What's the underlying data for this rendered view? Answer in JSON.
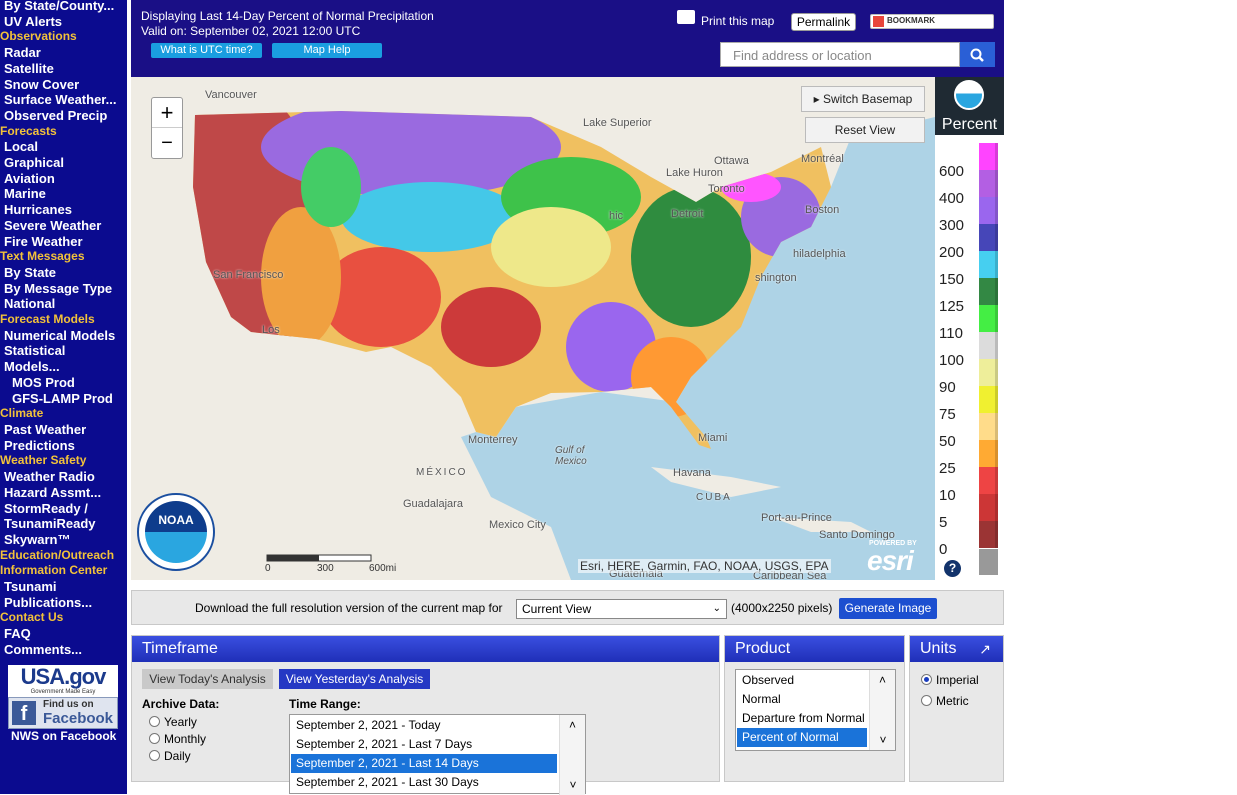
{
  "sidebar": {
    "top_links": [
      "By State/County...",
      "UV Alerts"
    ],
    "sections": [
      {
        "title": "Observations",
        "links": [
          "Radar",
          "Satellite",
          "Snow Cover",
          "Surface Weather...",
          "Observed Precip"
        ]
      },
      {
        "title": "Forecasts",
        "links": [
          "Local",
          "Graphical",
          "Aviation",
          "Marine",
          "Hurricanes",
          "Severe Weather",
          "Fire Weather"
        ]
      },
      {
        "title": "Text Messages",
        "links": [
          "By State",
          "By Message Type",
          "National"
        ]
      },
      {
        "title": "Forecast Models",
        "links": [
          "Numerical Models",
          "Statistical Models..."
        ],
        "sublinks": [
          "MOS Prod",
          "GFS-LAMP Prod"
        ]
      },
      {
        "title": "Climate",
        "links": [
          "Past Weather",
          "Predictions"
        ]
      },
      {
        "title": "Weather Safety",
        "links": [
          "Weather Radio",
          "Hazard Assmt...",
          "StormReady / TsunamiReady",
          "Skywarn™"
        ]
      },
      {
        "title": "Education/Outreach",
        "links": []
      },
      {
        "title": "Information Center",
        "links": [
          "Tsunami",
          "Publications..."
        ]
      },
      {
        "title": "Contact Us",
        "links": [
          "FAQ",
          "Comments..."
        ]
      }
    ],
    "usagov": "USA.gov",
    "usagov_tagline": "Government Made Easy",
    "facebook_find": "Find us on",
    "facebook": "Facebook",
    "nws_facebook": "NWS on Facebook"
  },
  "header": {
    "title": "Displaying Last 14-Day Percent of Normal Precipitation",
    "valid": "Valid on: September 02, 2021 12:00 UTC",
    "utc_button": "What is UTC time?",
    "help_button": "Map Help",
    "print": "Print this map",
    "permalink": "Permalink",
    "bookmark": "BOOKMARK",
    "search_placeholder": "Find address or location"
  },
  "map": {
    "zoom_in": "+",
    "zoom_out": "−",
    "switch_basemap": "Switch Basemap",
    "reset_view": "Reset View",
    "attribution": "Esri, HERE, Garmin, FAO, NOAA, USGS, EPA",
    "powered_by": "POWERED BY",
    "esri": "esri",
    "noaa": "NOAA",
    "scale_labels": [
      "0",
      "300",
      "600mi"
    ],
    "places": [
      "Vancouver",
      "Lake Superior",
      "Ottawa",
      "Montréal",
      "Lake Huron",
      "Toronto",
      "Detroit",
      "hic",
      "Boston",
      "hiladelphia",
      "shington",
      "San Francisco",
      "Los",
      "Monterrey",
      "Miami",
      "Gulf of Mexico",
      "Havana",
      "MÉXICO",
      "CUBA",
      "Guadalajara",
      "Mexico City",
      "Port-au-Prince",
      "Santo Domingo",
      "Guatemala",
      "Caribbean Sea"
    ]
  },
  "legend": {
    "title": "Percent",
    "labels": [
      "600",
      "400",
      "300",
      "200",
      "150",
      "125",
      "110",
      "100",
      "90",
      "75",
      "50",
      "25",
      "10",
      "5",
      "0"
    ],
    "help": "?"
  },
  "download": {
    "text": "Download the full resolution version of the current map for",
    "select": "Current View",
    "pixels": "(4000x2250 pixels)",
    "button": "Generate Image"
  },
  "timeframe": {
    "title": "Timeframe",
    "today": "View Today's Analysis",
    "yesterday": "View Yesterday's Analysis",
    "archive_label": "Archive Data:",
    "archive_options": [
      "Yearly",
      "Monthly",
      "Daily"
    ],
    "range_label": "Time Range:",
    "ranges": [
      "September 2, 2021 - Today",
      "September 2, 2021 - Last 7 Days",
      "September 2, 2021 - Last 14 Days",
      "September 2, 2021 - Last 30 Days"
    ]
  },
  "product": {
    "title": "Product",
    "options": [
      "Observed",
      "Normal",
      "Departure from Normal",
      "Percent of Normal"
    ]
  },
  "units": {
    "title": "Units",
    "arrow": "↗",
    "options": [
      "Imperial",
      "Metric"
    ]
  }
}
